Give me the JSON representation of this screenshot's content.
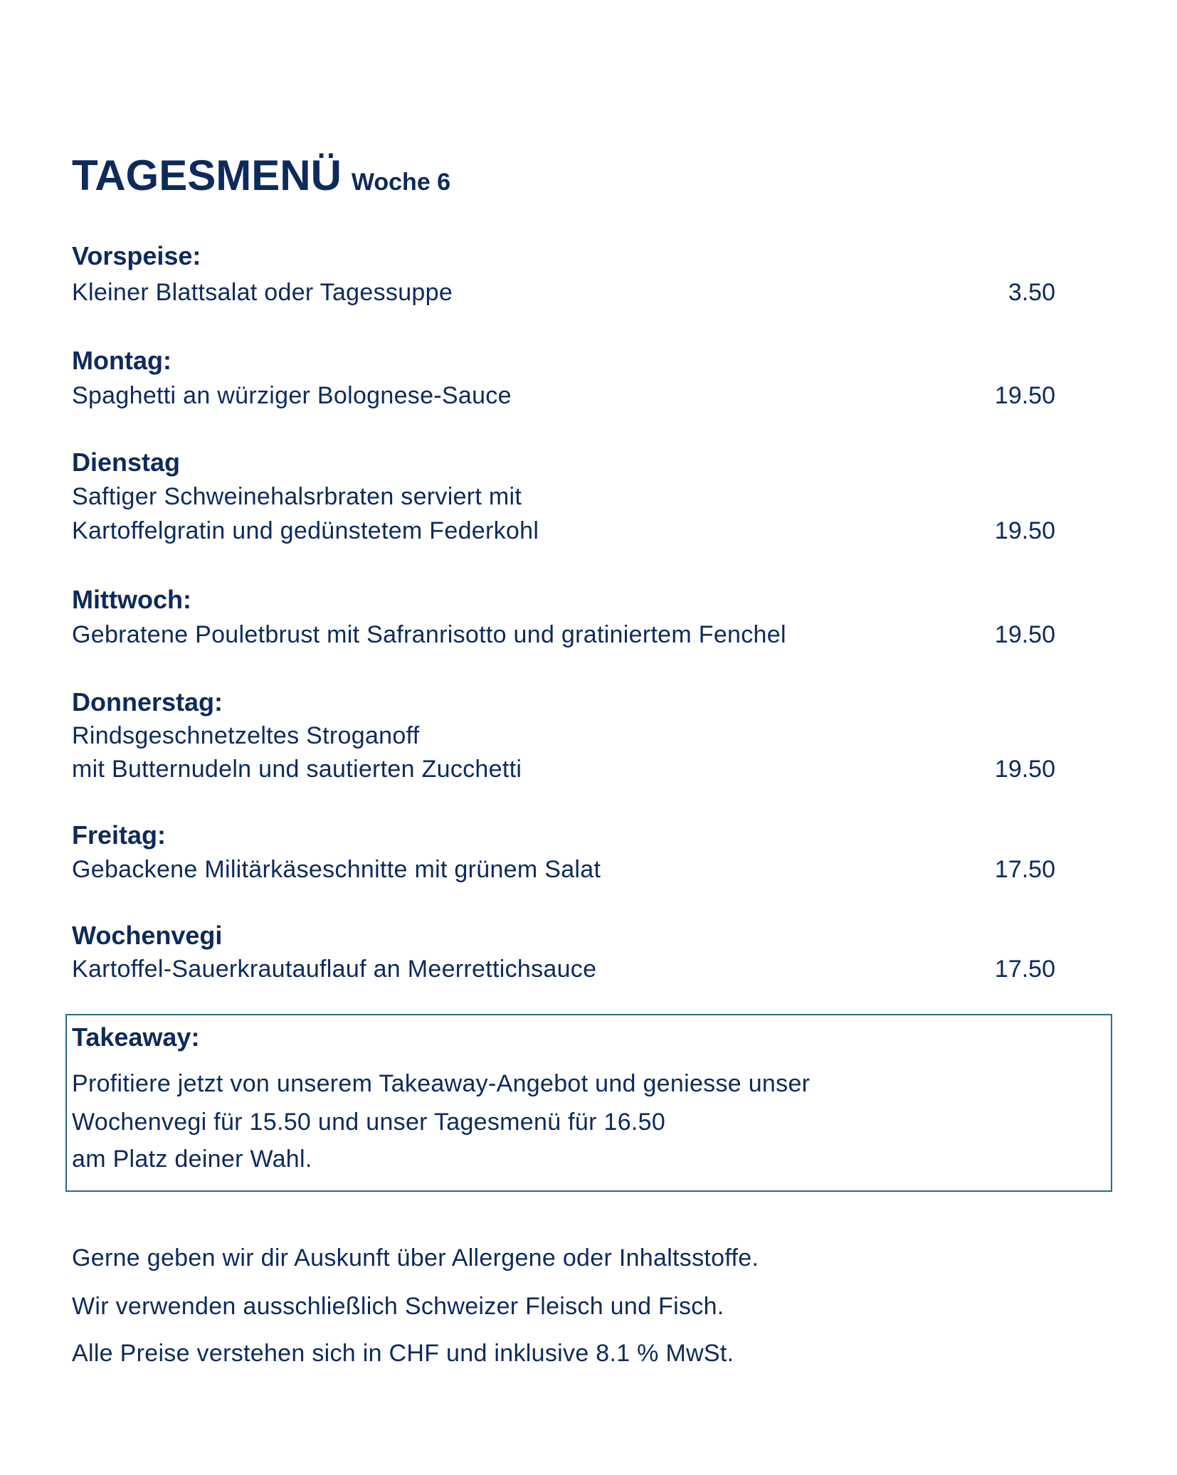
{
  "title": {
    "main": "TAGESMENÜ",
    "week": "Woche 6"
  },
  "items": [
    {
      "heading": "Vorspeise:",
      "lines": [
        "Kleiner Blattsalat oder Tagessuppe"
      ],
      "price": "3.50"
    },
    {
      "heading": "Montag:",
      "lines": [
        "Spaghetti an würziger Bolognese-Sauce"
      ],
      "price": "19.50"
    },
    {
      "heading": "Dienstag",
      "lines": [
        "Saftiger Schweinehalsrbraten serviert mit",
        "Kartoffelgratin und gedünstetem Federkohl"
      ],
      "price": "19.50"
    },
    {
      "heading": "Mittwoch:",
      "lines": [
        "Gebratene Pouletbrust mit Safranrisotto und gratiniertem Fenchel"
      ],
      "price": "19.50"
    },
    {
      "heading": "Donnerstag:",
      "lines": [
        "Rindsgeschnetzeltes Stroganoff",
        "mit Butternudeln und sautierten Zucchetti"
      ],
      "price": "19.50"
    },
    {
      "heading": "Freitag:",
      "lines": [
        "Gebackene Militärkäseschnitte mit grünem Salat"
      ],
      "price": "17.50"
    },
    {
      "heading": "Wochenvegi",
      "lines": [
        "Kartoffel-Sauerkrautauflauf an Meerrettichsauce"
      ],
      "price": "17.50"
    }
  ],
  "takeaway": {
    "heading": "Takeaway:",
    "lines": [
      "Profitiere jetzt von unserem Takeaway-Angebot und geniesse unser",
      "Wochenvegi für 15.50 und unser Tagesmenü für 16.50",
      "am Platz deiner Wahl."
    ]
  },
  "footer": [
    "Gerne geben wir dir Auskunft über Allergene oder Inhaltsstoffe.",
    "Wir verwenden ausschließlich Schweizer Fleisch und Fisch.",
    "Alle Preise verstehen sich in CHF und inklusive 8.1 % MwSt."
  ],
  "colors": {
    "text": "#0d2a5c",
    "box_border": "#2a6a8a"
  }
}
